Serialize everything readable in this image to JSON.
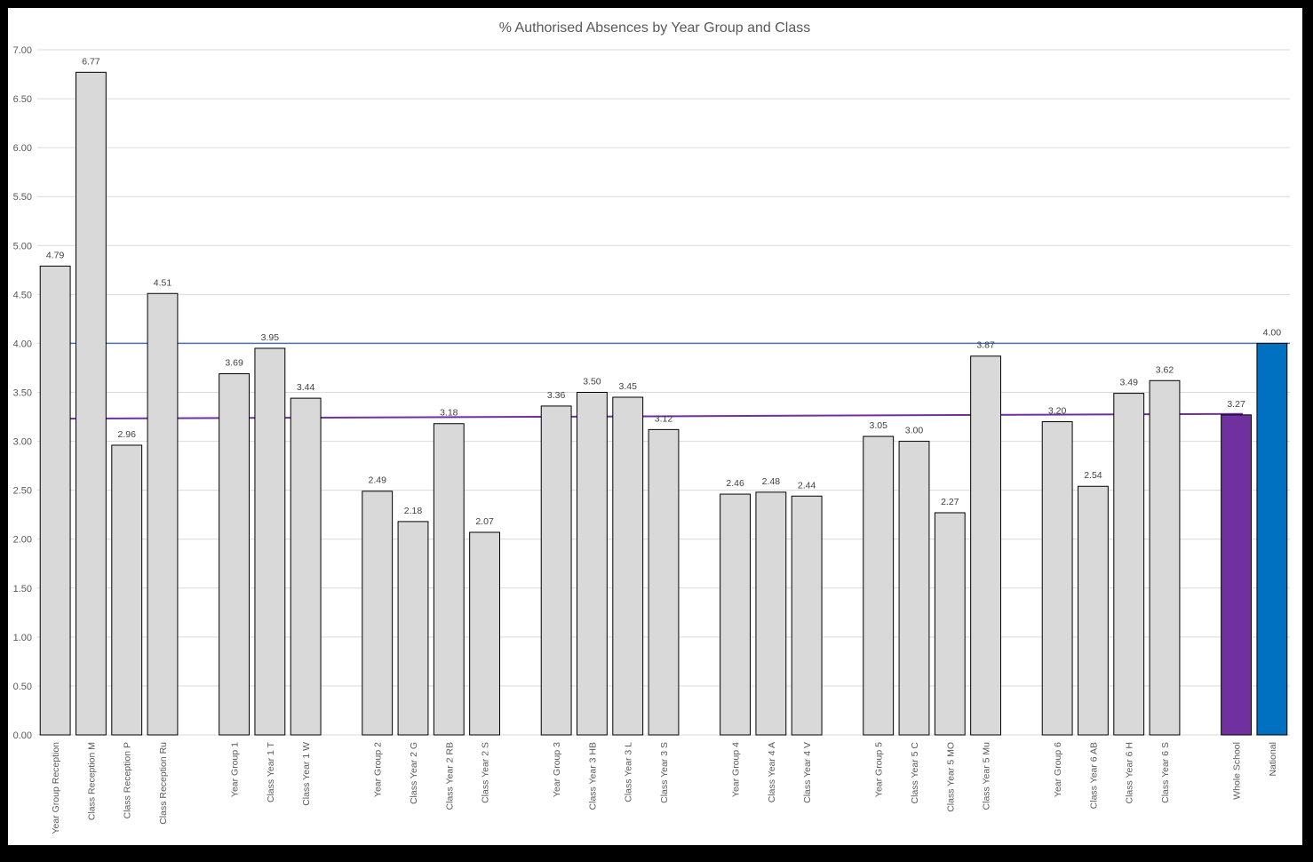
{
  "chart_data": {
    "type": "bar",
    "title": "% Authorised Absences by Year Group and Class",
    "xlabel": "",
    "ylabel": "",
    "ylim": [
      0,
      7
    ],
    "yticks": [
      "0.00",
      "0.50",
      "1.00",
      "1.50",
      "2.00",
      "2.50",
      "3.00",
      "3.50",
      "4.00",
      "4.50",
      "5.00",
      "5.50",
      "6.00",
      "6.50",
      "7.00"
    ],
    "grid": true,
    "legend": "none",
    "colors": {
      "default_bar": "#d9d9d9",
      "whole_school": "#7030a0",
      "national": "#0070c0",
      "national_line": "#4472c4",
      "whole_school_line": "#7030a0",
      "grid": "#d9d9d9"
    },
    "categories": [
      "Year Group Reception",
      "Class Reception M",
      "Class Reception P",
      "Class Reception Ru",
      "",
      "Year Group 1",
      "Class Year 1 T",
      "Class Year 1 W",
      "",
      "Year Group 2",
      "Class Year 2 G",
      "Class Year 2 RB",
      "Class Year 2 S",
      "",
      "Year Group 3",
      "Class Year 3 HB",
      "Class Year 3 L",
      "Class Year 3 S",
      "",
      "Year Group 4",
      "Class Year 4 A",
      "Class Year 4 V",
      "",
      "Year Group 5",
      "Class Year 5 C",
      "Class Year 5 MO",
      "Class Year 5 Mu",
      "",
      "Year Group 6",
      "Class Year 6 AB",
      "Class Year 6 H",
      "Class Year 6 S",
      "",
      "Whole School",
      "National"
    ],
    "values": [
      4.79,
      6.77,
      2.96,
      4.51,
      null,
      3.69,
      3.95,
      3.44,
      null,
      2.49,
      2.18,
      3.18,
      2.07,
      null,
      3.36,
      3.5,
      3.45,
      3.12,
      null,
      2.46,
      2.48,
      2.44,
      null,
      3.05,
      3.0,
      2.27,
      3.87,
      null,
      3.2,
      2.54,
      3.49,
      3.62,
      null,
      3.27,
      4.0
    ],
    "data_labels": [
      "4.79",
      "6.77",
      "2.96",
      "4.51",
      "",
      "3.69",
      "3.95",
      "3.44",
      "",
      "2.49",
      "2.18",
      "3.18",
      "2.07",
      "",
      "3.36",
      "3.50",
      "3.45",
      "3.12",
      "",
      "2.46",
      "2.48",
      "2.44",
      "",
      "3.05",
      "3.00",
      "2.27",
      "3.87",
      "",
      "3.20",
      "2.54",
      "3.49",
      "3.62",
      "",
      "3.27",
      "4.00"
    ],
    "reference_lines": [
      {
        "value": 4.0,
        "color": "#4472c4"
      },
      {
        "value_start": 3.23,
        "value_end": 3.28,
        "color": "#7030a0"
      }
    ]
  }
}
